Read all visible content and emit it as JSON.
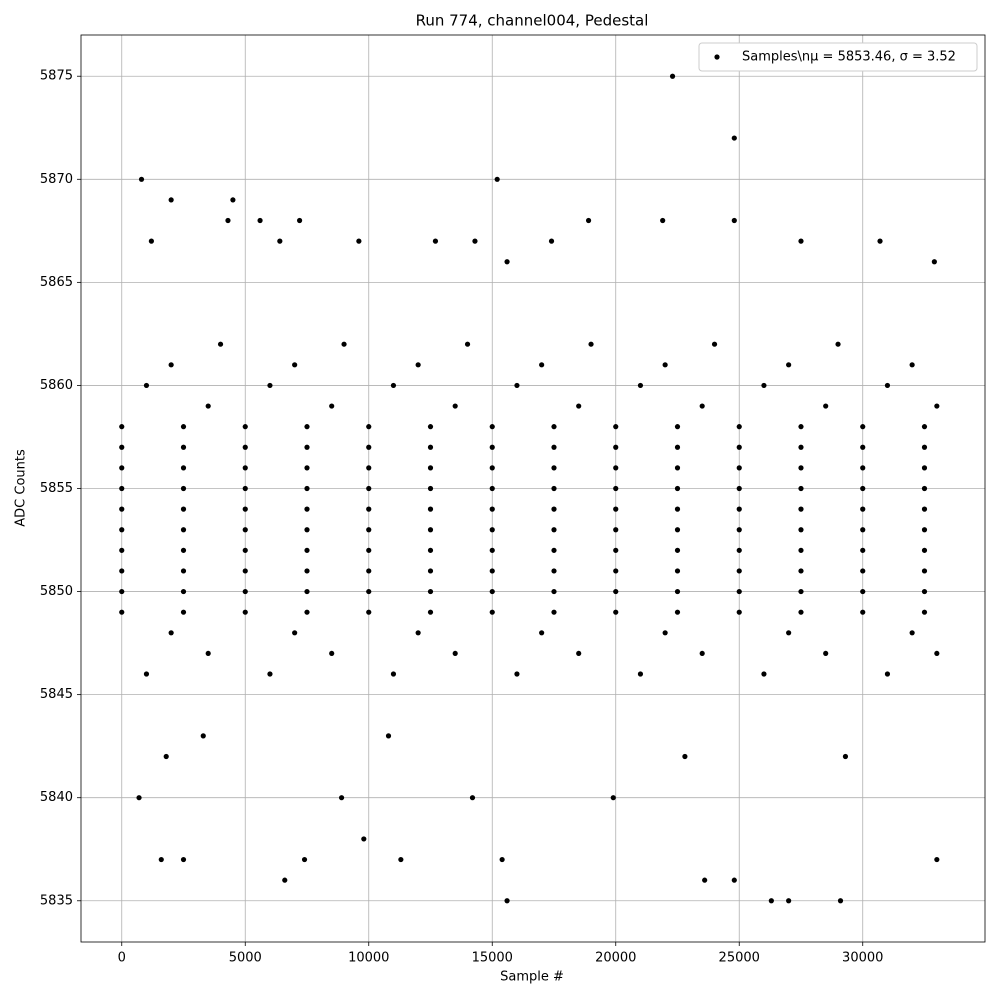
{
  "chart_data": {
    "type": "scatter",
    "title": "Run 774, channel004, Pedestal",
    "x_label": "Sample #",
    "y_label": "ADC Counts",
    "xlim": [
      -1650,
      34950
    ],
    "ylim": [
      5833,
      5877
    ],
    "xticks": [
      0,
      5000,
      10000,
      15000,
      20000,
      25000,
      30000
    ],
    "yticks": [
      5835,
      5840,
      5845,
      5850,
      5855,
      5860,
      5865,
      5870,
      5875
    ],
    "grid": true,
    "legend": "upper right",
    "x": [
      0,
      2500,
      5000,
      7500,
      10000,
      12500,
      15000,
      17500,
      20000,
      22500,
      25000,
      27500,
      30000,
      32500,
      0,
      2500,
      5000,
      7500,
      10000,
      12500,
      15000,
      17500,
      20000,
      22500,
      25000,
      27500,
      30000,
      32500,
      0,
      2500,
      5000,
      7500,
      10000,
      12500,
      15000,
      17500,
      20000,
      22500,
      25000,
      27500,
      30000,
      32500,
      0,
      2500,
      5000,
      7500,
      10000,
      12500,
      15000,
      17500,
      20000,
      22500,
      25000,
      27500,
      30000,
      32500,
      0,
      2500,
      5000,
      7500,
      10000,
      12500,
      15000,
      17500,
      20000,
      22500,
      25000,
      27500,
      30000,
      32500,
      0,
      2500,
      5000,
      7500,
      10000,
      12500,
      15000,
      17500,
      20000,
      22500,
      25000,
      27500,
      30000,
      32500,
      0,
      2500,
      5000,
      7500,
      10000,
      12500,
      15000,
      17500,
      20000,
      22500,
      25000,
      27500,
      30000,
      32500,
      0,
      2500,
      5000,
      7500,
      10000,
      12500,
      15000,
      17500,
      20000,
      22500,
      25000,
      27500,
      30000,
      32500,
      0,
      2500,
      5000,
      7500,
      10000,
      12500,
      15000,
      17500,
      20000,
      22500,
      25000,
      27500,
      30000,
      32500,
      0,
      2500,
      5000,
      7500,
      10000,
      12500,
      15000,
      17500,
      20000,
      22500,
      25000,
      27500,
      30000,
      32500,
      1000,
      6000,
      11000,
      16000,
      21000,
      26000,
      31000,
      1000,
      6000,
      11000,
      16000,
      21000,
      26000,
      31000,
      3500,
      8500,
      13500,
      18500,
      23500,
      28500,
      33000,
      3500,
      8500,
      13500,
      18500,
      23500,
      28500,
      33000,
      2000,
      7000,
      12000,
      17000,
      22000,
      27000,
      32000,
      2000,
      7000,
      12000,
      17000,
      22000,
      27000,
      32000,
      4000,
      9000,
      14000,
      19000,
      24000,
      29000,
      800,
      2000,
      4500,
      15200,
      22300,
      24800,
      4300,
      5600,
      7200,
      18900,
      21900,
      24800,
      1200,
      6400,
      9600,
      12700,
      14300,
      17400,
      27500,
      30700,
      32900,
      15600,
      2500,
      1600,
      7400,
      11300,
      15400,
      6600,
      15600,
      26300,
      27000,
      29100,
      24800,
      23600,
      700,
      8900,
      9800,
      14200,
      19900,
      33000,
      1800,
      22800,
      29300,
      3300,
      10800
    ],
    "series": [
      {
        "name": "Samples\\nμ = 5853.46, σ = 3.52",
        "color": "#000000",
        "values": [
          5849,
          5849,
          5849,
          5849,
          5849,
          5849,
          5849,
          5849,
          5849,
          5849,
          5849,
          5849,
          5849,
          5849,
          5850,
          5850,
          5850,
          5850,
          5850,
          5850,
          5850,
          5850,
          5850,
          5850,
          5850,
          5850,
          5850,
          5850,
          5851,
          5851,
          5851,
          5851,
          5851,
          5851,
          5851,
          5851,
          5851,
          5851,
          5851,
          5851,
          5851,
          5851,
          5852,
          5852,
          5852,
          5852,
          5852,
          5852,
          5852,
          5852,
          5852,
          5852,
          5852,
          5852,
          5852,
          5852,
          5853,
          5853,
          5853,
          5853,
          5853,
          5853,
          5853,
          5853,
          5853,
          5853,
          5853,
          5853,
          5853,
          5853,
          5854,
          5854,
          5854,
          5854,
          5854,
          5854,
          5854,
          5854,
          5854,
          5854,
          5854,
          5854,
          5854,
          5854,
          5855,
          5855,
          5855,
          5855,
          5855,
          5855,
          5855,
          5855,
          5855,
          5855,
          5855,
          5855,
          5855,
          5855,
          5856,
          5856,
          5856,
          5856,
          5856,
          5856,
          5856,
          5856,
          5856,
          5856,
          5856,
          5856,
          5856,
          5856,
          5857,
          5857,
          5857,
          5857,
          5857,
          5857,
          5857,
          5857,
          5857,
          5857,
          5857,
          5857,
          5857,
          5857,
          5858,
          5858,
          5858,
          5858,
          5858,
          5858,
          5858,
          5858,
          5858,
          5858,
          5858,
          5858,
          5858,
          5858,
          5846,
          5846,
          5846,
          5846,
          5846,
          5846,
          5846,
          5860,
          5860,
          5860,
          5860,
          5860,
          5860,
          5860,
          5847,
          5847,
          5847,
          5847,
          5847,
          5847,
          5847,
          5859,
          5859,
          5859,
          5859,
          5859,
          5859,
          5859,
          5848,
          5848,
          5848,
          5848,
          5848,
          5848,
          5848,
          5861,
          5861,
          5861,
          5861,
          5861,
          5861,
          5861,
          5862,
          5862,
          5862,
          5862,
          5862,
          5862,
          5870,
          5869,
          5869,
          5870,
          5875,
          5872,
          5868,
          5868,
          5868,
          5868,
          5868,
          5868,
          5867,
          5867,
          5867,
          5867,
          5867,
          5867,
          5867,
          5867,
          5866,
          5866,
          5837,
          5837,
          5837,
          5837,
          5837,
          5836,
          5835,
          5835,
          5835,
          5835,
          5836,
          5836,
          5840,
          5840,
          5838,
          5840,
          5840,
          5837,
          5842,
          5842,
          5842,
          5843,
          5843
        ]
      }
    ]
  }
}
